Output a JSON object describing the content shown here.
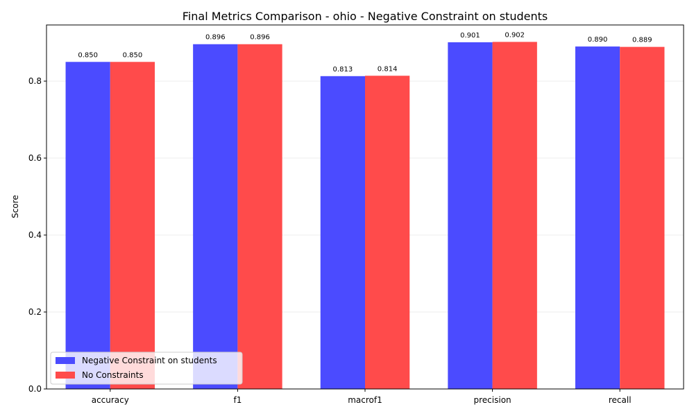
{
  "chart_data": {
    "type": "bar",
    "title": "Final Metrics Comparison - ohio - Negative Constraint on students",
    "xlabel": "",
    "ylabel": "Score",
    "categories": [
      "accuracy",
      "f1",
      "macrof1",
      "precision",
      "recall"
    ],
    "series": [
      {
        "name": "Negative Constraint on students",
        "color": "#4b4bff",
        "values": [
          0.85,
          0.896,
          0.813,
          0.901,
          0.89
        ]
      },
      {
        "name": "No Constraints",
        "color": "#ff4b4b",
        "values": [
          0.85,
          0.896,
          0.814,
          0.902,
          0.889
        ]
      }
    ],
    "ylim": [
      0,
      0.946
    ],
    "yticks": [
      0.0,
      0.2,
      0.4,
      0.6,
      0.8
    ],
    "grid": true,
    "legend_position": "lower-left"
  }
}
